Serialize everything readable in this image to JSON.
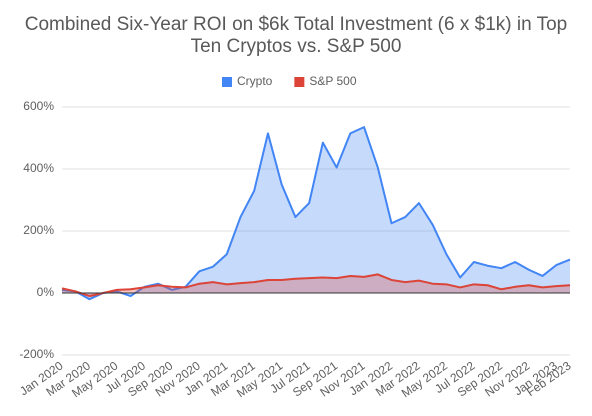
{
  "chart_data": {
    "type": "area",
    "title": "Combined Six-Year ROI on $6k Total Investment (6 x $1k) in Top Ten Cryptos vs. S&P 500",
    "categories": [
      "Jan 2020",
      null,
      "Mar 2020",
      null,
      "May 2020",
      null,
      "Jul 2020",
      null,
      "Sep 2020",
      null,
      "Nov 2020",
      null,
      "Jan 2021",
      null,
      "Mar 2021",
      null,
      "May 2021",
      null,
      "Jul 2021",
      null,
      "Sep 2021",
      null,
      "Nov 2021",
      null,
      "Jan 2022",
      null,
      "Mar 2022",
      null,
      "May 2022",
      null,
      "Jul 2022",
      null,
      "Sep 2022",
      null,
      "Nov 2022",
      null,
      "Jan 2023",
      "Feb 2023"
    ],
    "series": [
      {
        "name": "Crypto",
        "color": "#4285f4",
        "values": [
          10,
          5,
          -20,
          0,
          5,
          -10,
          20,
          30,
          10,
          20,
          70,
          85,
          125,
          245,
          330,
          515,
          350,
          245,
          290,
          485,
          405,
          515,
          535,
          405,
          225,
          245,
          290,
          220,
          125,
          50,
          100,
          88,
          80,
          100,
          75,
          55,
          90,
          108
        ]
      },
      {
        "name": "S&P 500",
        "color": "#db4437",
        "values": [
          15,
          5,
          -10,
          0,
          10,
          12,
          18,
          25,
          20,
          18,
          30,
          35,
          28,
          32,
          35,
          42,
          42,
          46,
          48,
          50,
          48,
          55,
          52,
          60,
          42,
          35,
          40,
          30,
          28,
          18,
          28,
          25,
          12,
          20,
          25,
          18,
          22,
          25
        ]
      }
    ],
    "ylim": [
      -200,
      600
    ],
    "yticks": [
      {
        "value": -200,
        "label": "-200%"
      },
      {
        "value": 0,
        "label": "0%"
      },
      {
        "value": 200,
        "label": "200%"
      },
      {
        "value": 400,
        "label": "400%"
      },
      {
        "value": 600,
        "label": "600%"
      }
    ],
    "grid": true,
    "legend": "top"
  }
}
